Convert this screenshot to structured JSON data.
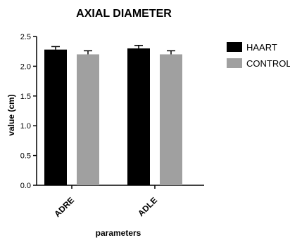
{
  "chart_data": {
    "type": "bar",
    "title": "AXIAL DIAMETER",
    "xlabel": "parameters",
    "ylabel": "value (cm)",
    "categories": [
      "ADRE",
      "ADLE"
    ],
    "series": [
      {
        "name": "HAART",
        "values": [
          2.28,
          2.3
        ],
        "errors": [
          0.05,
          0.05
        ],
        "color": "#000000"
      },
      {
        "name": "CONTROL",
        "values": [
          2.2,
          2.2
        ],
        "errors": [
          0.06,
          0.06
        ],
        "color": "#a0a0a0"
      }
    ],
    "ylim": [
      0,
      2.5
    ],
    "yticks": [
      "0.0",
      "0.5",
      "1.0",
      "1.5",
      "2.0",
      "2.5"
    ],
    "grid": false,
    "legend": "right"
  }
}
